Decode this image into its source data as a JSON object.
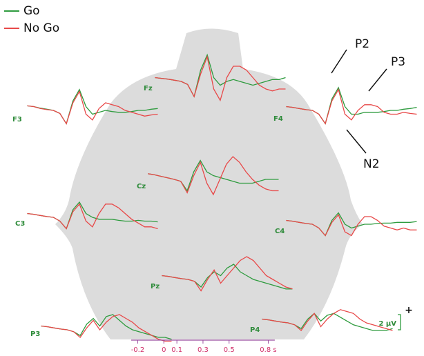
{
  "chart_data": {
    "type": "line",
    "x": [
      -0.2,
      -0.15,
      -0.1,
      -0.05,
      0,
      0.05,
      0.1,
      0.15,
      0.2,
      0.25,
      0.3,
      0.35,
      0.4,
      0.45,
      0.5,
      0.55,
      0.6,
      0.65,
      0.7,
      0.75,
      0.8
    ],
    "xlim": [
      -0.25,
      0.85
    ],
    "xticks": [
      -0.2,
      0,
      0.1,
      0.3,
      0.5,
      {
        "value": 0.8,
        "label": "0.8 s"
      }
    ],
    "series": [
      {
        "name": "Go",
        "color": "#2e9b3e"
      },
      {
        "name": "No Go",
        "color": "#e84848"
      }
    ],
    "annotations": [
      "P2",
      "P3",
      "N2"
    ],
    "scale_bar": {
      "value": 2,
      "label": "2 μV",
      "polarity": "+"
    },
    "panels": [
      {
        "label": "F3",
        "values": [
          [
            1.2,
            1,
            0.6,
            0.3,
            0,
            -0.8,
            -3.5,
            2.5,
            5.5,
            1,
            -1,
            -0.5,
            0,
            -0.3,
            -0.5,
            -0.5,
            -0.3,
            0,
            0,
            0.3,
            0.5
          ],
          [
            1.2,
            1,
            0.5,
            0.2,
            0,
            -0.8,
            -3.5,
            2,
            5,
            -1,
            -2.5,
            0.5,
            2,
            1.5,
            1,
            0,
            -0.5,
            -1,
            -1.5,
            -1.2,
            -1
          ]
        ]
      },
      {
        "label": "Fz",
        "values": [
          [
            1,
            0.8,
            0.6,
            0.3,
            0,
            -0.8,
            -4,
            3,
            7,
            1,
            -1,
            0,
            0.5,
            0,
            -0.5,
            -1,
            -0.5,
            0,
            0.5,
            0.5,
            1
          ],
          [
            1,
            0.8,
            0.6,
            0.3,
            0,
            -0.8,
            -4,
            2,
            6.5,
            -2,
            -5,
            1,
            4,
            4,
            3,
            1,
            -1,
            -2,
            -2.5,
            -2,
            -2
          ]
        ]
      },
      {
        "label": "F4",
        "values": [
          [
            1,
            0.8,
            0.5,
            0.2,
            0,
            -1,
            -3.5,
            3,
            6,
            1,
            -1,
            -1,
            -0.5,
            -0.5,
            -0.5,
            -0.3,
            0,
            0,
            0.3,
            0.5,
            0.8
          ],
          [
            1,
            0.8,
            0.5,
            0.2,
            0,
            -1,
            -3.5,
            2.5,
            5.5,
            -1,
            -2.5,
            0,
            1.5,
            1.5,
            1,
            -0.5,
            -1,
            -1,
            -0.5,
            -0.8,
            -1
          ]
        ]
      },
      {
        "label": "Cz",
        "values": [
          [
            1.5,
            1.2,
            0.8,
            0.4,
            0,
            -0.5,
            -3,
            2,
            5,
            2,
            1,
            0.5,
            0,
            -0.5,
            -1,
            -1,
            -1,
            -0.5,
            0,
            0,
            0
          ],
          [
            1.5,
            1.2,
            0.8,
            0.4,
            0,
            -0.5,
            -3.5,
            1,
            4.5,
            -1,
            -4,
            0,
            4,
            6,
            4.5,
            2,
            0,
            -1.5,
            -2.5,
            -3,
            -3
          ]
        ]
      },
      {
        "label": "C3",
        "values": [
          [
            1,
            0.8,
            0.5,
            0.2,
            0,
            -1,
            -3,
            2,
            4,
            1,
            0,
            -0.5,
            -0.5,
            -0.5,
            -0.8,
            -1,
            -1,
            -0.8,
            -1,
            -1,
            -1.2
          ],
          [
            1,
            0.8,
            0.5,
            0.2,
            0,
            -1,
            -3,
            1.5,
            3.5,
            -1,
            -2.5,
            1,
            3.5,
            3.5,
            2.5,
            1,
            -0.5,
            -1.5,
            -2.5,
            -2.5,
            -3
          ]
        ]
      },
      {
        "label": "C4",
        "values": [
          [
            1,
            0.8,
            0.5,
            0.2,
            0,
            -1,
            -3,
            1,
            3,
            0,
            -1,
            -0.5,
            0,
            0,
            0.2,
            0.3,
            0.3,
            0.5,
            0.5,
            0.5,
            0.7
          ],
          [
            1,
            0.8,
            0.5,
            0.2,
            0,
            -1,
            -3,
            0.5,
            2.5,
            -2,
            -3,
            0,
            2,
            2,
            1,
            -0.5,
            -1,
            -1.5,
            -1,
            -1.5,
            -1.5
          ]
        ]
      },
      {
        "label": "Pz",
        "values": [
          [
            1,
            0.8,
            0.5,
            0.2,
            0,
            -0.5,
            -2,
            0.5,
            2,
            1,
            3,
            4,
            2,
            1,
            0,
            -0.5,
            -1,
            -1.5,
            -2,
            -2.5,
            -2.5
          ],
          [
            1,
            0.8,
            0.5,
            0.2,
            0,
            -0.5,
            -3,
            0,
            2.5,
            -1,
            1,
            3,
            5,
            6,
            5,
            3,
            1,
            0,
            -1,
            -2,
            -2.5
          ]
        ]
      },
      {
        "label": "P3",
        "values": [
          [
            1,
            0.8,
            0.5,
            0.2,
            0,
            -0.5,
            -1.5,
            1.5,
            3,
            1,
            3.5,
            4,
            2.5,
            1,
            0,
            -0.5,
            -1,
            -1.5,
            -2,
            -2,
            -2.5
          ],
          [
            1,
            0.8,
            0.5,
            0.2,
            0,
            -0.5,
            -2,
            0.5,
            2.5,
            0,
            2,
            3.5,
            4,
            3,
            2,
            0.5,
            -0.5,
            -1.5,
            -2.5,
            -3,
            -3
          ]
        ]
      },
      {
        "label": "P4",
        "values": [
          [
            1,
            0.8,
            0.5,
            0.2,
            0,
            -0.5,
            -1.5,
            1,
            2.5,
            0.5,
            2,
            2.5,
            1.5,
            0.5,
            -0.5,
            -1,
            -1.5,
            -2,
            -2,
            -2,
            -1.5
          ],
          [
            1,
            0.8,
            0.5,
            0.2,
            0,
            -0.5,
            -2,
            0.5,
            2.5,
            -1,
            1,
            2.5,
            3.5,
            3,
            2.5,
            1,
            0,
            -0.5,
            -1,
            -1.5,
            -2
          ]
        ]
      }
    ]
  }
}
